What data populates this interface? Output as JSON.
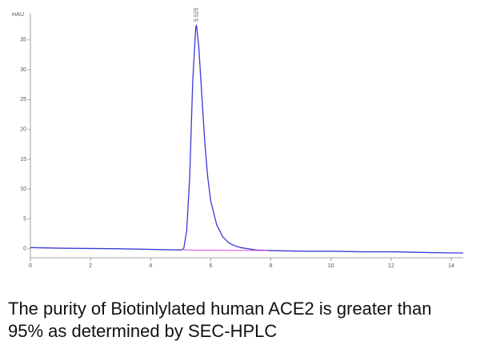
{
  "chart_data": {
    "type": "line",
    "ylabel": "mAU",
    "peak_label": "5.525",
    "xlim": [
      0,
      14.4
    ],
    "ylim": [
      -1.5,
      39.4
    ],
    "xticks": [
      0,
      2,
      4,
      6,
      8,
      10,
      12,
      14
    ],
    "yticks": [
      0,
      5,
      10,
      15,
      20,
      25,
      30,
      35
    ],
    "series": [
      {
        "color": "#3a3ad6",
        "x": [
          0,
          1,
          2,
          3,
          4,
          5,
          5.1,
          5.2,
          5.3,
          5.4,
          5.5,
          5.525,
          5.6,
          5.7,
          5.8,
          5.9,
          6.0,
          6.2,
          6.4,
          6.6,
          6.8,
          7.0,
          7.5,
          8,
          9,
          10,
          11,
          12,
          13,
          14,
          14.4
        ],
        "values": [
          0.2,
          0.1,
          0.05,
          0,
          -0.1,
          -0.2,
          0,
          3,
          12,
          28,
          37,
          37.5,
          34,
          26,
          18,
          12,
          8,
          4,
          2,
          1,
          0.5,
          0.2,
          -0.2,
          -0.3,
          -0.4,
          -0.4,
          -0.5,
          -0.5,
          -0.6,
          -0.7,
          -0.7
        ]
      },
      {
        "color": "#e04ad8",
        "x": [
          5.1,
          7.9
        ],
        "values": [
          -0.2,
          -0.3
        ]
      }
    ]
  },
  "caption": "The purity of Biotinlylated human ACE2 is greater than 95% as determined by SEC-HPLC"
}
